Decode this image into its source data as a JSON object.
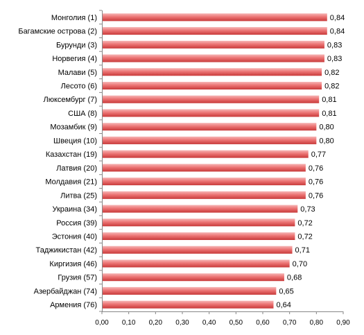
{
  "chart_data": {
    "type": "bar",
    "orientation": "horizontal",
    "title": "",
    "xlabel": "",
    "ylabel": "",
    "categories": [
      "Монголия (1)",
      "Багамские острова (2)",
      "Бурунди (3)",
      "Норвегия (4)",
      "Малави (5)",
      "Лесото (6)",
      "Люксембург (7)",
      "США (8)",
      "Мозамбик (9)",
      "Швеция (10)",
      "Казахстан (19)",
      "Латвия (20)",
      "Молдавия (21)",
      "Литва (25)",
      "Украина (34)",
      "Россия (39)",
      "Эстония (40)",
      "Таджикистан (42)",
      "Киргизия (46)",
      "Грузия (57)",
      "Азербайджан (74)",
      "Армения (76)"
    ],
    "values": [
      0.84,
      0.84,
      0.83,
      0.83,
      0.82,
      0.82,
      0.81,
      0.81,
      0.8,
      0.8,
      0.77,
      0.76,
      0.76,
      0.76,
      0.73,
      0.72,
      0.72,
      0.71,
      0.7,
      0.68,
      0.65,
      0.64
    ],
    "value_labels": [
      "0,84",
      "0,84",
      "0,83",
      "0,83",
      "0,82",
      "0,82",
      "0,81",
      "0,81",
      "0,80",
      "0,80",
      "0,77",
      "0,76",
      "0,76",
      "0,76",
      "0,73",
      "0,72",
      "0,72",
      "0,71",
      "0,70",
      "0,68",
      "0,65",
      "0,64"
    ],
    "xlim": [
      0,
      0.9
    ],
    "x_ticks": [
      "0,00",
      "0,10",
      "0,20",
      "0,30",
      "0,40",
      "0,50",
      "0,60",
      "0,70",
      "0,80",
      "0,90"
    ],
    "grid": false,
    "legend": "none",
    "colors": {
      "bar_light": "#f6b6b6",
      "bar_mid": "#ec7474",
      "bar_dark": "#c83a3a",
      "axis": "#868686"
    }
  }
}
